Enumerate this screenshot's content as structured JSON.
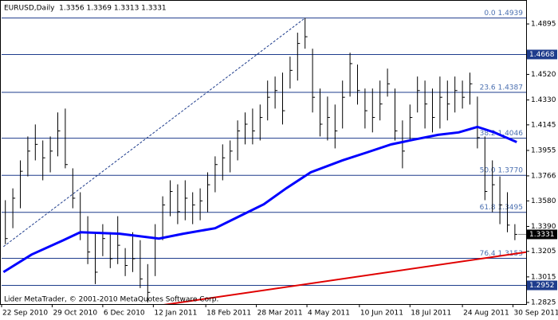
{
  "chart_data": {
    "type": "ohlc",
    "title": "EURUSD,Daily  1.3356 1.3369 1.3313 1.3331",
    "footer": "Lider MetaTrader, © 2001-2010 MetaQuotes Software Corp.",
    "bar_color": "#000000",
    "x": [
      2,
      6,
      10,
      14,
      18,
      22,
      26,
      30,
      34,
      38,
      42,
      46,
      50,
      54,
      58,
      62,
      66,
      70,
      74,
      78,
      82,
      86,
      90,
      94,
      98,
      102,
      106,
      110,
      114,
      118,
      122,
      126,
      130,
      134,
      138,
      142,
      146,
      150,
      154,
      158,
      162,
      166,
      170,
      174,
      178,
      182,
      186,
      190,
      194,
      198,
      202,
      206,
      210,
      214,
      218,
      222,
      226,
      230,
      234,
      238,
      242,
      246,
      250,
      254,
      258,
      262,
      266,
      270,
      274
    ],
    "high": [
      1.3585,
      1.3673,
      1.3881,
      1.4059,
      1.4148,
      1.4029,
      1.4059,
      1.4237,
      1.4266,
      1.3822,
      1.3644,
      1.3466,
      1.3347,
      1.3407,
      1.3347,
      1.3466,
      1.3229,
      1.3347,
      1.3288,
      1.311,
      1.3407,
      1.3614,
      1.3733,
      1.3703,
      1.3733,
      1.3644,
      1.3673,
      1.3792,
      1.3911,
      1.4,
      1.4029,
      1.4178,
      1.4237,
      1.4266,
      1.4296,
      1.4474,
      1.4504,
      1.4533,
      1.4652,
      1.483,
      1.4939,
      1.4711,
      1.4415,
      1.4355,
      1.4296,
      1.4474,
      1.4681,
      1.4593,
      1.4415,
      1.4415,
      1.4474,
      1.4563,
      1.4415,
      1.4178,
      1.4296,
      1.4504,
      1.4474,
      1.4415,
      1.4504,
      1.4474,
      1.4504,
      1.4474,
      1.4533,
      1.4355,
      1.4059,
      1.3881,
      1.3762,
      1.3644,
      1.3407
    ],
    "low": [
      1.3258,
      1.3377,
      1.3525,
      1.3762,
      1.3881,
      1.3733,
      1.3792,
      1.3911,
      1.3822,
      1.3525,
      1.3288,
      1.311,
      1.2962,
      1.3169,
      1.308,
      1.311,
      1.3021,
      1.3051,
      1.2932,
      1.2825,
      1.3021,
      1.3288,
      1.3466,
      1.3407,
      1.3436,
      1.3407,
      1.3436,
      1.3496,
      1.3644,
      1.3733,
      1.3792,
      1.3881,
      1.4,
      1.4,
      1.4029,
      1.4178,
      1.4266,
      1.4148,
      1.4415,
      1.4474,
      1.4711,
      1.4237,
      1.4059,
      1.4029,
      1.397,
      1.4118,
      1.4355,
      1.4296,
      1.4118,
      1.4089,
      1.4178,
      1.4355,
      1.4029,
      1.3822,
      1.4029,
      1.4237,
      1.4118,
      1.4089,
      1.4118,
      1.4178,
      1.4237,
      1.4266,
      1.4296,
      1.397,
      1.3585,
      1.3496,
      1.3407,
      1.3347,
      1.3288
    ],
    "close": [
      1.33,
      1.36,
      1.38,
      1.395,
      1.4,
      1.39,
      1.395,
      1.41,
      1.385,
      1.36,
      1.335,
      1.32,
      1.305,
      1.33,
      1.315,
      1.325,
      1.31,
      1.315,
      1.3,
      1.29,
      1.33,
      1.355,
      1.365,
      1.35,
      1.36,
      1.355,
      1.358,
      1.37,
      1.385,
      1.39,
      1.395,
      1.41,
      1.415,
      1.41,
      1.42,
      1.435,
      1.44,
      1.425,
      1.455,
      1.475,
      1.48,
      1.435,
      1.415,
      1.42,
      1.41,
      1.435,
      1.46,
      1.44,
      1.425,
      1.42,
      1.43,
      1.445,
      1.41,
      1.395,
      1.42,
      1.44,
      1.43,
      1.42,
      1.435,
      1.43,
      1.44,
      1.435,
      1.445,
      1.405,
      1.365,
      1.37,
      1.355,
      1.34,
      1.3331
    ],
    "moving_average": {
      "color": "#0000ff",
      "x": [
        1,
        16,
        33,
        42,
        63,
        84,
        97,
        114,
        127,
        140,
        152,
        165,
        182,
        195,
        208,
        220,
        233,
        244,
        254,
        263,
        275
      ],
      "values": [
        1.3051,
        1.3181,
        1.3288,
        1.3347,
        1.3336,
        1.33,
        1.3336,
        1.3377,
        1.3466,
        1.3555,
        1.3674,
        1.3792,
        1.3881,
        1.394,
        1.4,
        1.4035,
        1.4071,
        1.4089,
        1.413,
        1.4089,
        1.4017
      ]
    },
    "trend_line": {
      "color": "#e00000",
      "x": [
        84,
        280
      ],
      "values": [
        1.2802,
        1.3199
      ]
    },
    "fib_trendline": {
      "color": "#1e3c8c",
      "x": [
        1,
        162
      ],
      "values": [
        1.324,
        1.4939
      ]
    },
    "fibonacci": {
      "color": "#1e3c8c",
      "text_color": "#4a6fb0",
      "levels": [
        {
          "value": 1.4939,
          "label": "0.0 1.4939"
        },
        {
          "value": 1.4387,
          "label": "23.6 1.4387"
        },
        {
          "value": 1.4046,
          "label": "38.2 1.4046"
        },
        {
          "value": 1.377,
          "label": "50.0 1.3770"
        },
        {
          "value": 1.3495,
          "label": "61.8 1.3495"
        },
        {
          "value": 1.3153,
          "label": "76.4 1.3153"
        }
      ]
    },
    "horizontal_lines": [
      {
        "value": 1.4668,
        "color": "#1e3c8c"
      },
      {
        "value": 1.2952,
        "color": "#1e3c8c"
      }
    ],
    "last_price": 1.3331,
    "xlim": [
      0,
      280
    ],
    "ylim": [
      1.2813,
      1.5067
    ],
    "xticks": [
      {
        "value": 0,
        "label": "22 Sep 2010"
      },
      {
        "value": 27,
        "label": "29 Oct 2010"
      },
      {
        "value": 54,
        "label": "6 Dec 2010"
      },
      {
        "value": 81,
        "label": "12 Jan 2011"
      },
      {
        "value": 109,
        "label": "18 Feb 2011"
      },
      {
        "value": 136,
        "label": "28 Mar 2011"
      },
      {
        "value": 163,
        "label": "4 May 2011"
      },
      {
        "value": 191,
        "label": "10 Jun 2011"
      },
      {
        "value": 218,
        "label": "18 Jul 2011"
      },
      {
        "value": 246,
        "label": "24 Aug 2011"
      },
      {
        "value": 273,
        "label": "30 Sep 2011"
      }
    ],
    "yticks": [
      1.4895,
      {
        "value": 1.452,
        "label": "1.4520"
      },
      {
        "value": 1.433,
        "label": "1.4330"
      },
      1.4145,
      1.3955,
      1.3766,
      {
        "value": 1.358,
        "label": "1.3580"
      },
      {
        "value": 1.339,
        "label": "1.3390"
      },
      1.3205,
      1.3015,
      1.2825
    ],
    "grid": false
  }
}
